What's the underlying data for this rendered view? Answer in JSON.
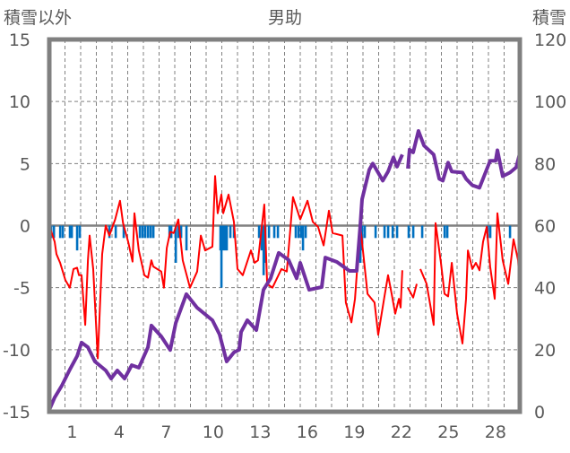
{
  "chart_data": {
    "type": "line",
    "title": "男助",
    "left_axis_label": "積雪以外",
    "right_axis_label": "積雪",
    "x_range": [
      0,
      30
    ],
    "left_ylim": [
      -15,
      15
    ],
    "right_ylim": [
      0,
      120
    ],
    "left_ticks": [
      "15",
      "10",
      "5",
      "0",
      "-5",
      "-10",
      "-15"
    ],
    "left_tick_values": [
      15,
      10,
      5,
      0,
      -5,
      -10,
      -15
    ],
    "right_ticks": [
      "120",
      "100",
      "80",
      "60",
      "40",
      "20",
      "0"
    ],
    "right_tick_values": [
      120,
      100,
      80,
      60,
      40,
      20,
      0
    ],
    "x_ticks": [
      "1",
      "4",
      "7",
      "10",
      "13",
      "16",
      "19",
      "22",
      "25",
      "28"
    ],
    "x_tick_values": [
      1,
      4,
      7,
      10,
      13,
      16,
      19,
      22,
      25,
      28
    ],
    "grid": true,
    "colors": {
      "temperature": "#ff0000",
      "snow": "#7030a0",
      "precip": "#0070c0",
      "frame": "#808080",
      "grid": "#808080"
    },
    "series": [
      {
        "name": "temperature",
        "axis": "left",
        "type": "line",
        "points": [
          [
            0,
            0
          ],
          [
            0.34,
            -1.3
          ],
          [
            0.46,
            -2.3
          ],
          [
            0.69,
            -3
          ],
          [
            1.03,
            -4.4
          ],
          [
            1.31,
            -5
          ],
          [
            1.54,
            -3.5
          ],
          [
            1.77,
            -3.4
          ],
          [
            1.89,
            -4
          ],
          [
            2.06,
            -4
          ],
          [
            2.29,
            -8
          ],
          [
            2.46,
            -2.8
          ],
          [
            2.57,
            -0.8
          ],
          [
            2.8,
            -3.5
          ],
          [
            3.09,
            -10.7
          ],
          [
            3.37,
            -2.3
          ],
          [
            3.6,
            0
          ],
          [
            3.83,
            -0.8
          ],
          [
            4.2,
            0.5
          ],
          [
            4.51,
            2
          ],
          [
            4.7,
            0.2
          ],
          [
            5.03,
            -1.3
          ],
          [
            5.31,
            -2.9
          ],
          [
            5.43,
            1
          ],
          [
            5.71,
            -2
          ],
          [
            6.06,
            -4
          ],
          [
            6.29,
            -4.2
          ],
          [
            6.51,
            -2.8
          ],
          [
            6.63,
            -3.3
          ],
          [
            7.14,
            -3.7
          ],
          [
            7.31,
            -5
          ],
          [
            7.49,
            -1.8
          ],
          [
            7.71,
            -0.5
          ],
          [
            7.94,
            -0.6
          ],
          [
            8.23,
            0.5
          ],
          [
            8.51,
            -2.8
          ],
          [
            8.97,
            -5
          ],
          [
            9.43,
            -3.7
          ],
          [
            9.66,
            -0.8
          ],
          [
            9.94,
            -2
          ],
          [
            10.4,
            -1.7
          ],
          [
            10.57,
            4
          ],
          [
            10.74,
            1
          ],
          [
            10.97,
            2.5
          ],
          [
            11.09,
            1
          ],
          [
            11.43,
            2.5
          ],
          [
            11.77,
            0.3
          ],
          [
            12,
            -3.5
          ],
          [
            12.34,
            -4
          ],
          [
            12.86,
            -2
          ],
          [
            13.09,
            -3
          ],
          [
            13.31,
            -2.8
          ],
          [
            13.71,
            1.7
          ],
          [
            13.89,
            -4.7
          ],
          [
            14.23,
            -5
          ],
          [
            14.8,
            -3.5
          ],
          [
            15.14,
            -3.7
          ],
          [
            15.54,
            2.3
          ],
          [
            16,
            0.5
          ],
          [
            16.46,
            2
          ],
          [
            16.8,
            0.3
          ],
          [
            17.14,
            -0.1
          ],
          [
            17.49,
            -1.6
          ],
          [
            17.83,
            1.2
          ],
          [
            18.06,
            -0.6
          ],
          [
            18.69,
            -0.8
          ],
          [
            18.91,
            -6.2
          ],
          [
            19.26,
            -7.8
          ],
          [
            19.49,
            -5.9
          ],
          [
            19.83,
            0
          ],
          [
            20.29,
            -5.5
          ],
          [
            20.74,
            -6.2
          ],
          [
            20.97,
            -8.8
          ],
          [
            21.37,
            -5.7
          ],
          [
            21.6,
            -4
          ],
          [
            21.83,
            -5.5
          ],
          [
            22.06,
            -7.1
          ],
          [
            22.29,
            -5.9
          ],
          [
            22.4,
            -6.6
          ],
          [
            22.51,
            -3.6
          ],
          [
            null,
            null
          ],
          [
            22.86,
            -5
          ],
          [
            23.2,
            -5.8
          ],
          [
            23.43,
            -4.7
          ],
          [
            null,
            null
          ],
          [
            23.66,
            -3.5
          ],
          [
            24.06,
            -4.7
          ],
          [
            24.51,
            -8
          ],
          [
            24.63,
            0.2
          ],
          [
            24.97,
            -3
          ],
          [
            25.2,
            -5.5
          ],
          [
            25.43,
            -5.7
          ],
          [
            25.66,
            -3
          ],
          [
            26,
            -7.1
          ],
          [
            26.34,
            -9.5
          ],
          [
            26.57,
            -5.9
          ],
          [
            26.69,
            -2
          ],
          [
            26.97,
            -3.5
          ],
          [
            27.2,
            -3
          ],
          [
            27.43,
            -3.6
          ],
          [
            27.66,
            -1.3
          ],
          [
            27.89,
            -0.1
          ],
          [
            28.11,
            -3.3
          ],
          [
            28.4,
            -5.9
          ],
          [
            28.57,
            1
          ],
          [
            28.91,
            -2.8
          ],
          [
            29.26,
            -4.7
          ],
          [
            29.6,
            -1.1
          ],
          [
            29.89,
            -2.8
          ],
          [
            30,
            -5.2
          ]
        ]
      },
      {
        "name": "snow_depth",
        "axis": "right",
        "type": "line",
        "points": [
          [
            0,
            0.6
          ],
          [
            0.34,
            4.6
          ],
          [
            0.8,
            8.4
          ],
          [
            1.31,
            13.6
          ],
          [
            1.77,
            17.9
          ],
          [
            2.06,
            22.3
          ],
          [
            2.46,
            20.8
          ],
          [
            2.91,
            16.2
          ],
          [
            3.6,
            13.3
          ],
          [
            3.94,
            10.7
          ],
          [
            4.34,
            13.3
          ],
          [
            4.8,
            10.7
          ],
          [
            5.26,
            15
          ],
          [
            5.71,
            14.2
          ],
          [
            6.29,
            20.8
          ],
          [
            6.51,
            27.8
          ],
          [
            7.14,
            24.3
          ],
          [
            7.71,
            19.9
          ],
          [
            8.06,
            28.6
          ],
          [
            8.74,
            37.9
          ],
          [
            9.43,
            33.5
          ],
          [
            10.4,
            29.5
          ],
          [
            10.86,
            24.9
          ],
          [
            11.31,
            16.2
          ],
          [
            11.77,
            19.1
          ],
          [
            12.11,
            20
          ],
          [
            12.23,
            25.7
          ],
          [
            12.63,
            29.5
          ],
          [
            13.2,
            26.3
          ],
          [
            13.66,
            39.3
          ],
          [
            14.11,
            43
          ],
          [
            14.63,
            51.2
          ],
          [
            15.26,
            48.9
          ],
          [
            15.77,
            43
          ],
          [
            16,
            48
          ],
          [
            16.57,
            39.3
          ],
          [
            17.37,
            40.2
          ],
          [
            17.6,
            49.7
          ],
          [
            18.34,
            48.3
          ],
          [
            19.14,
            45.4
          ],
          [
            19.6,
            45.4
          ],
          [
            19.83,
            60
          ],
          [
            19.94,
            68.5
          ],
          [
            20.4,
            78
          ],
          [
            20.63,
            80
          ],
          [
            21.26,
            74.5
          ],
          [
            21.6,
            77.4
          ],
          [
            21.94,
            82
          ],
          [
            22.17,
            79
          ],
          [
            22.51,
            82.9
          ],
          [
            null,
            null
          ],
          [
            22.86,
            78.4
          ],
          [
            22.97,
            84.5
          ],
          [
            23.2,
            83.6
          ],
          [
            23.54,
            90.5
          ],
          [
            23.89,
            85.8
          ],
          [
            24.51,
            82.9
          ],
          [
            24.86,
            75.1
          ],
          [
            25.09,
            74.5
          ],
          [
            25.43,
            80.3
          ],
          [
            25.66,
            77.4
          ],
          [
            26.34,
            77.1
          ],
          [
            26.57,
            75.1
          ],
          [
            26.97,
            73
          ],
          [
            27.43,
            72.2
          ],
          [
            28.11,
            80.9
          ],
          [
            28.46,
            80.9
          ],
          [
            28.57,
            84.3
          ],
          [
            28.91,
            75.9
          ],
          [
            29.37,
            77.1
          ],
          [
            29.77,
            78.8
          ],
          [
            30,
            83.3
          ]
        ]
      },
      {
        "name": "precipitation",
        "axis": "left",
        "type": "bar",
        "points": [
          [
            0.11,
            -1
          ],
          [
            0.29,
            -1
          ],
          [
            0.69,
            -1
          ],
          [
            0.86,
            -1
          ],
          [
            1.31,
            -1
          ],
          [
            1.43,
            -1
          ],
          [
            1.77,
            -2
          ],
          [
            1.94,
            -1
          ],
          [
            3.83,
            -1
          ],
          [
            4.23,
            -1
          ],
          [
            4.74,
            -1
          ],
          [
            5.77,
            -1
          ],
          [
            5.94,
            -1
          ],
          [
            6.11,
            -1
          ],
          [
            6.29,
            -1
          ],
          [
            6.46,
            -1
          ],
          [
            6.63,
            -1
          ],
          [
            7.66,
            -1
          ],
          [
            7.77,
            -1
          ],
          [
            8.06,
            -3
          ],
          [
            8.23,
            -1
          ],
          [
            8.4,
            -1
          ],
          [
            8.74,
            -2
          ],
          [
            10.91,
            -2
          ],
          [
            10.97,
            -5
          ],
          [
            11.09,
            -2
          ],
          [
            11.2,
            -2
          ],
          [
            11.31,
            -2
          ],
          [
            11.54,
            -1
          ],
          [
            11.77,
            -1
          ],
          [
            13.37,
            -1
          ],
          [
            13.54,
            -2
          ],
          [
            13.66,
            -4
          ],
          [
            13.77,
            -3
          ],
          [
            14,
            -1
          ],
          [
            14.34,
            -1
          ],
          [
            14.57,
            -1
          ],
          [
            15.71,
            -1
          ],
          [
            15.89,
            -1
          ],
          [
            16.06,
            -1
          ],
          [
            16.17,
            -2
          ],
          [
            16.34,
            -1
          ],
          [
            19.83,
            -3
          ],
          [
            19.94,
            -2
          ],
          [
            20.11,
            -1
          ],
          [
            20.8,
            -1
          ],
          [
            21.37,
            -1
          ],
          [
            21.6,
            -1
          ],
          [
            21.89,
            -1
          ],
          [
            22.17,
            -1
          ],
          [
            22.91,
            -1
          ],
          [
            23.2,
            -1
          ],
          [
            23.77,
            -1
          ],
          [
            25.2,
            -1
          ],
          [
            25.37,
            -1
          ],
          [
            27.94,
            -1
          ],
          [
            28.11,
            -1
          ],
          [
            29.37,
            -1
          ],
          [
            29.94,
            -1
          ]
        ]
      }
    ]
  }
}
